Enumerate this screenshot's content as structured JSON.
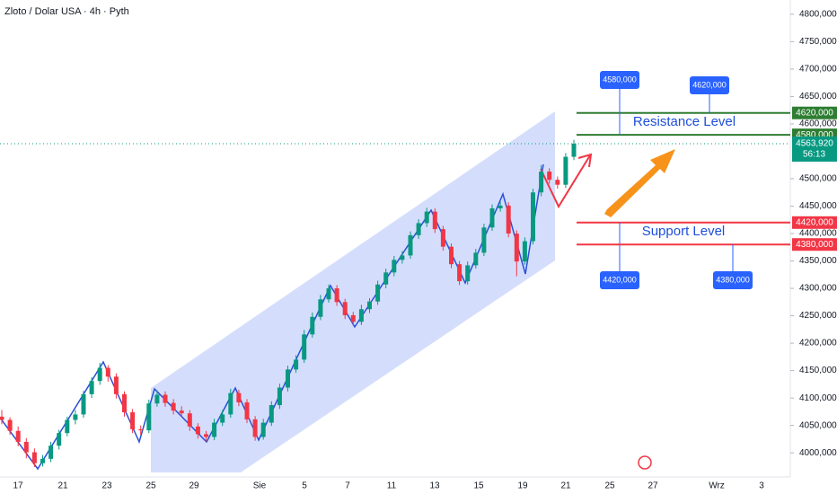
{
  "header": {
    "title": "Zloto / Dolar USA · 4h · Pyth"
  },
  "chart_data": {
    "type": "candlestick",
    "up_color": "#089981",
    "down_color": "#f23645",
    "categories": [
      "17",
      "21",
      "23",
      "25",
      "29",
      "Sie",
      "5",
      "7",
      "11",
      "13",
      "15",
      "19",
      "21",
      "25",
      "27",
      "Wrz",
      "3"
    ],
    "ylim": [
      3956,
      4826
    ],
    "yticks": [
      {
        "value": 4800,
        "label": "4800,000"
      },
      {
        "value": 4750,
        "label": "4750,000"
      },
      {
        "value": 4700,
        "label": "4700,000"
      },
      {
        "value": 4650,
        "label": "4650,000"
      },
      {
        "value": 4600,
        "label": "4600,000"
      },
      {
        "value": 4500,
        "label": "4500,000"
      },
      {
        "value": 4450,
        "label": "4450,000"
      },
      {
        "value": 4400,
        "label": "4400,000"
      },
      {
        "value": 4350,
        "label": "4350,000"
      },
      {
        "value": 4300,
        "label": "4300,000"
      },
      {
        "value": 4250,
        "label": "4250,000"
      },
      {
        "value": 4200,
        "label": "4200,000"
      },
      {
        "value": 4150,
        "label": "4150,000"
      },
      {
        "value": 4100,
        "label": "4100,000"
      },
      {
        "value": 4050,
        "label": "4050,000"
      },
      {
        "value": 4000,
        "label": "4000,000"
      }
    ],
    "candles": [
      [
        4066,
        4078,
        4052,
        4060
      ],
      [
        4060,
        4065,
        4033,
        4040
      ],
      [
        4040,
        4048,
        4012,
        4020
      ],
      [
        4020,
        4027,
        3990,
        4001
      ],
      [
        4001,
        4008,
        3974,
        3981
      ],
      [
        3981,
        3996,
        3975,
        3989
      ],
      [
        3989,
        4020,
        3983,
        4013
      ],
      [
        4013,
        4042,
        4006,
        4036
      ],
      [
        4036,
        4066,
        4030,
        4060
      ],
      [
        4060,
        4078,
        4052,
        4070
      ],
      [
        4070,
        4113,
        4064,
        4107
      ],
      [
        4107,
        4138,
        4100,
        4131
      ],
      [
        4131,
        4164,
        4124,
        4155
      ],
      [
        4155,
        4160,
        4130,
        4139
      ],
      [
        4139,
        4145,
        4099,
        4107
      ],
      [
        4107,
        4112,
        4066,
        4074
      ],
      [
        4074,
        4080,
        4036,
        4043
      ],
      [
        4043,
        4050,
        4033,
        4041
      ],
      [
        4041,
        4097,
        4036,
        4090
      ],
      [
        4090,
        4114,
        4084,
        4106
      ],
      [
        4106,
        4112,
        4084,
        4091
      ],
      [
        4091,
        4098,
        4070,
        4077
      ],
      [
        4077,
        4085,
        4066,
        4072
      ],
      [
        4072,
        4078,
        4040,
        4048
      ],
      [
        4048,
        4054,
        4026,
        4034
      ],
      [
        4034,
        4040,
        4021,
        4029
      ],
      [
        4029,
        4062,
        4023,
        4055
      ],
      [
        4055,
        4078,
        4049,
        4070
      ],
      [
        4070,
        4117,
        4064,
        4109
      ],
      [
        4109,
        4115,
        4085,
        4092
      ],
      [
        4092,
        4098,
        4054,
        4061
      ],
      [
        4061,
        4067,
        4022,
        4029
      ],
      [
        4029,
        4062,
        4024,
        4055
      ],
      [
        4055,
        4094,
        4049,
        4087
      ],
      [
        4087,
        4126,
        4080,
        4119
      ],
      [
        4119,
        4159,
        4112,
        4152
      ],
      [
        4152,
        4178,
        4146,
        4170
      ],
      [
        4170,
        4224,
        4164,
        4216
      ],
      [
        4216,
        4256,
        4210,
        4248
      ],
      [
        4248,
        4288,
        4242,
        4280
      ],
      [
        4280,
        4307,
        4274,
        4300
      ],
      [
        4300,
        4306,
        4268,
        4275
      ],
      [
        4275,
        4281,
        4244,
        4251
      ],
      [
        4251,
        4257,
        4232,
        4239
      ],
      [
        4239,
        4270,
        4233,
        4262
      ],
      [
        4262,
        4282,
        4255,
        4276
      ],
      [
        4276,
        4314,
        4270,
        4307
      ],
      [
        4307,
        4336,
        4300,
        4329
      ],
      [
        4329,
        4359,
        4322,
        4352
      ],
      [
        4352,
        4368,
        4345,
        4360
      ],
      [
        4360,
        4404,
        4354,
        4397
      ],
      [
        4397,
        4426,
        4390,
        4419
      ],
      [
        4419,
        4447,
        4412,
        4440
      ],
      [
        4440,
        4446,
        4401,
        4408
      ],
      [
        4408,
        4414,
        4369,
        4376
      ],
      [
        4376,
        4382,
        4337,
        4344
      ],
      [
        4344,
        4350,
        4306,
        4313
      ],
      [
        4313,
        4349,
        4307,
        4342
      ],
      [
        4342,
        4372,
        4336,
        4365
      ],
      [
        4365,
        4418,
        4359,
        4411
      ],
      [
        4411,
        4453,
        4405,
        4446
      ],
      [
        4446,
        4458,
        4440,
        4451
      ],
      [
        4451,
        4457,
        4393,
        4400
      ],
      [
        4400,
        4406,
        4322,
        4349
      ],
      [
        4349,
        4393,
        4343,
        4386
      ],
      [
        4386,
        4482,
        4380,
        4475
      ],
      [
        4475,
        4525,
        4468,
        4513
      ],
      [
        4513,
        4519,
        4491,
        4498
      ],
      [
        4498,
        4504,
        4482,
        4489
      ],
      [
        4489,
        4547,
        4483,
        4540
      ],
      [
        4540,
        4571,
        4534,
        4563.92
      ]
    ],
    "levels": [
      {
        "value": 4620,
        "label": "4620,000",
        "color": "#2e7d32"
      },
      {
        "value": 4580,
        "label": "4580,000",
        "color": "#2e7d32"
      },
      {
        "value": 4420,
        "label": "4420,000",
        "color": "#f23645"
      },
      {
        "value": 4380,
        "label": "4380,000",
        "color": "#f23645"
      }
    ],
    "current_price": {
      "value": 4563.92,
      "label": "4563,920",
      "countdown": "56:13",
      "color": "#089981"
    },
    "annotations": {
      "resistance": "Resistance Level",
      "support": "Support Level"
    }
  }
}
